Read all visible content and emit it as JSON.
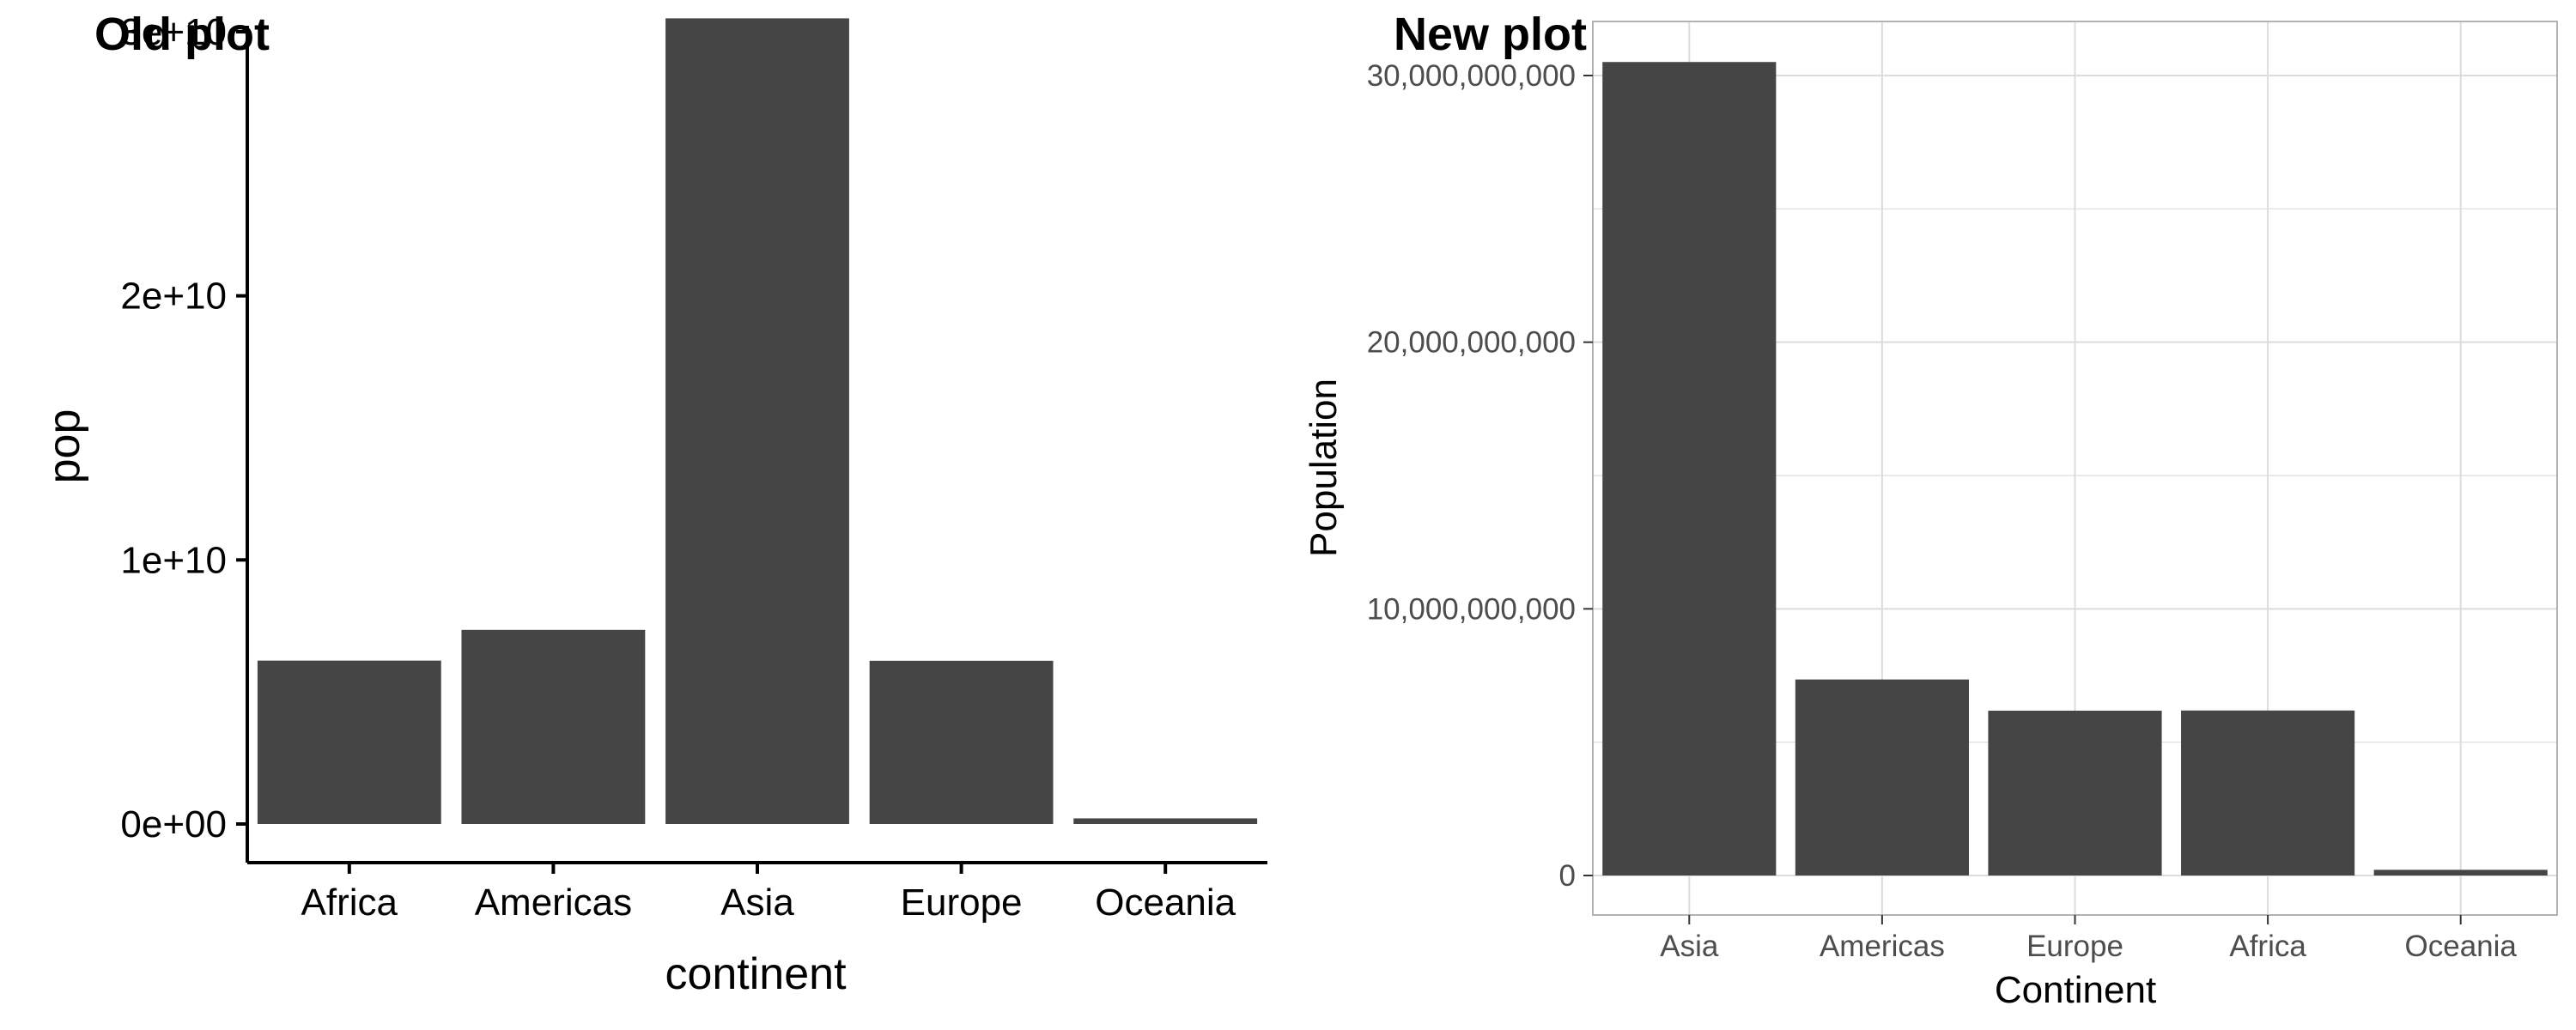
{
  "chart_data": [
    {
      "type": "bar",
      "title": "Old plot",
      "xlabel": "continent",
      "ylabel": "pop",
      "categories": [
        "Africa",
        "Americas",
        "Asia",
        "Europe",
        "Oceania"
      ],
      "values": [
        6187585961,
        7351438499,
        30507333901,
        6181115304,
        212992136
      ],
      "ylim": [
        0,
        32000000000
      ],
      "yticks": [
        0,
        10000000000,
        20000000000,
        30000000000
      ],
      "ytick_labels": [
        "0e+00",
        "1e+10",
        "2e+10",
        "3e+10"
      ],
      "grid": false,
      "bar_color": "#454545"
    },
    {
      "type": "bar",
      "title": "New plot",
      "xlabel": "Continent",
      "ylabel": "Population",
      "categories": [
        "Asia",
        "Americas",
        "Europe",
        "Africa",
        "Oceania"
      ],
      "values": [
        30507333901,
        7351438499,
        6181115304,
        6187585961,
        212992136
      ],
      "ylim": [
        0,
        32000000000
      ],
      "yticks": [
        0,
        10000000000,
        20000000000,
        30000000000
      ],
      "ytick_labels": [
        "0",
        "10,000,000,000",
        "20,000,000,000",
        "30,000,000,000"
      ],
      "grid": true,
      "bar_color": "#454545",
      "grid_color": "#dcdcdc",
      "panel_border_color": "#b3b3b3"
    }
  ]
}
